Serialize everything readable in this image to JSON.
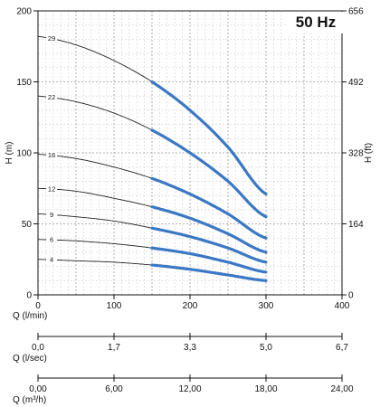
{
  "chart_data": {
    "type": "line",
    "title": "50 Hz",
    "xlabel": "Q (l/min)",
    "ylabel": "H (m)",
    "ylabel_right": "H (ft)",
    "xlim": [
      0,
      400
    ],
    "ylim": [
      0,
      200
    ],
    "x_ticks": [
      "0",
      "100",
      "200",
      "300",
      "400"
    ],
    "y_ticks": [
      "0",
      "50",
      "100",
      "150",
      "200"
    ],
    "y_ticks_right": [
      "0",
      "164",
      "328",
      "492",
      "656"
    ],
    "grid": true,
    "secondary_axes": [
      {
        "label": "Q (l/sec)",
        "ticks": [
          "0,0",
          "1,7",
          "3,3",
          "5,0",
          "6,7"
        ]
      },
      {
        "label": "Q (m³/h)",
        "ticks": [
          "0,00",
          "6,00",
          "12,00",
          "18,00",
          "24,00"
        ]
      }
    ],
    "operating_range": [
      150,
      300
    ],
    "series": [
      {
        "name": "29",
        "x": [
          0,
          50,
          100,
          150,
          200,
          250,
          300
        ],
        "y": [
          182,
          176,
          165,
          150,
          130,
          104,
          71
        ]
      },
      {
        "name": "22",
        "x": [
          0,
          50,
          100,
          150,
          200,
          250,
          300
        ],
        "y": [
          140,
          136,
          128,
          116,
          100,
          80,
          55
        ]
      },
      {
        "name": "16",
        "x": [
          0,
          50,
          100,
          150,
          200,
          250,
          300
        ],
        "y": [
          99,
          96,
          90,
          82,
          71,
          57,
          40
        ]
      },
      {
        "name": "12",
        "x": [
          0,
          50,
          100,
          150,
          200,
          250,
          300
        ],
        "y": [
          75,
          73,
          68,
          62,
          54,
          43,
          30
        ]
      },
      {
        "name": "9",
        "x": [
          0,
          50,
          100,
          150,
          200,
          250,
          300
        ],
        "y": [
          57,
          55,
          52,
          47,
          41,
          33,
          23
        ]
      },
      {
        "name": "6",
        "x": [
          0,
          50,
          100,
          150,
          200,
          250,
          300
        ],
        "y": [
          39,
          38,
          36,
          33,
          29,
          23,
          16
        ]
      },
      {
        "name": "4",
        "x": [
          0,
          50,
          100,
          150,
          200,
          250,
          300
        ],
        "y": [
          25,
          24,
          23,
          21,
          18,
          14,
          10
        ]
      }
    ],
    "colors": {
      "operating": "#3b78c4",
      "curve": "#222222",
      "grid": "#9a9a9a",
      "grid_minor": "#c8c8c8",
      "axis": "#111111"
    }
  }
}
